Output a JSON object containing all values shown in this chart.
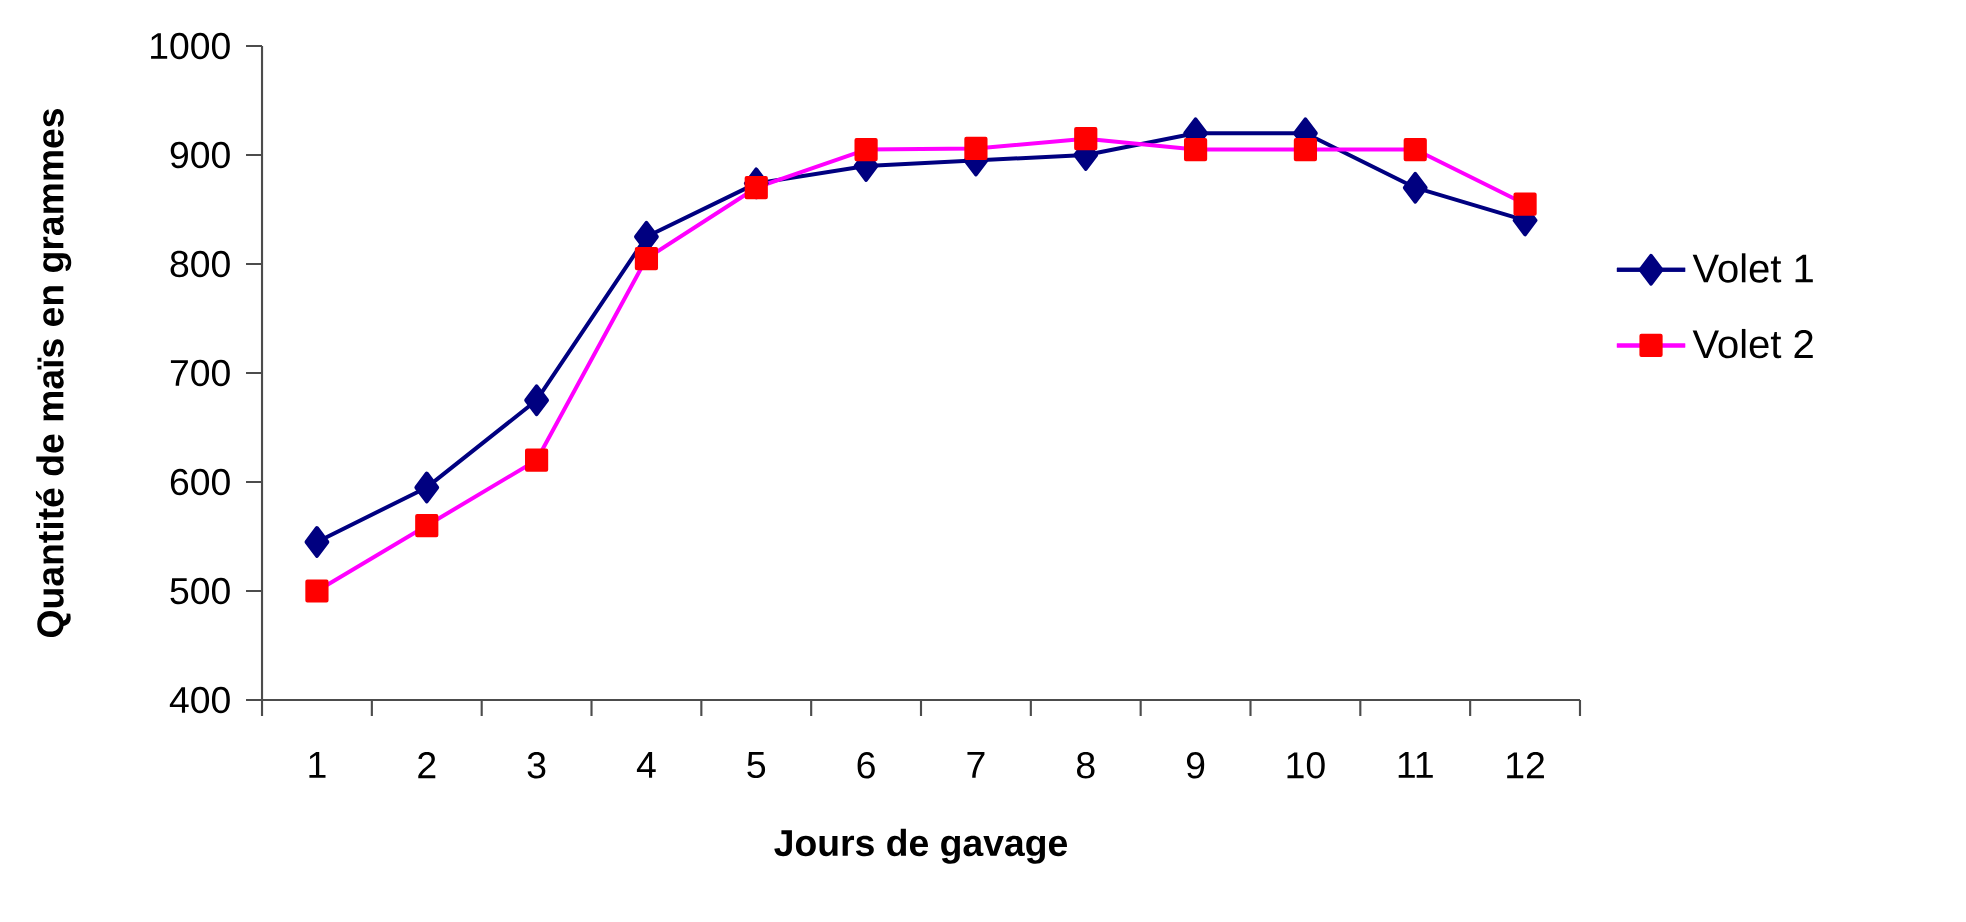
{
  "chart_data": {
    "type": "line",
    "xlabel": "Jours de gavage",
    "ylabel": "Quantité de maïs en grammes",
    "categories": [
      "1",
      "2",
      "3",
      "4",
      "5",
      "6",
      "7",
      "8",
      "9",
      "10",
      "11",
      "12"
    ],
    "ylim": [
      400,
      1000
    ],
    "yticks": [
      400,
      500,
      600,
      700,
      800,
      900,
      1000
    ],
    "grid": false,
    "legend": "right",
    "series": [
      {
        "name": "Volet 1",
        "color": "#000080",
        "marker": "diamond",
        "values": [
          545,
          595,
          675,
          825,
          874,
          890,
          895,
          900,
          920,
          920,
          870,
          840
        ]
      },
      {
        "name": "Volet 2",
        "color": "#ff00ff",
        "colors": [
          "#ff0000",
          "#ff0000",
          "#ff0000",
          "#ff0000",
          "#ff0000",
          "#ff0000",
          "#ff0000",
          "#ff0000",
          "#ff0000",
          "#ff0000",
          "#ff0000",
          "#ff0000"
        ],
        "marker": "square",
        "values": [
          500,
          560,
          620,
          805,
          870,
          905,
          906,
          915,
          905,
          905,
          905,
          855
        ]
      }
    ]
  }
}
